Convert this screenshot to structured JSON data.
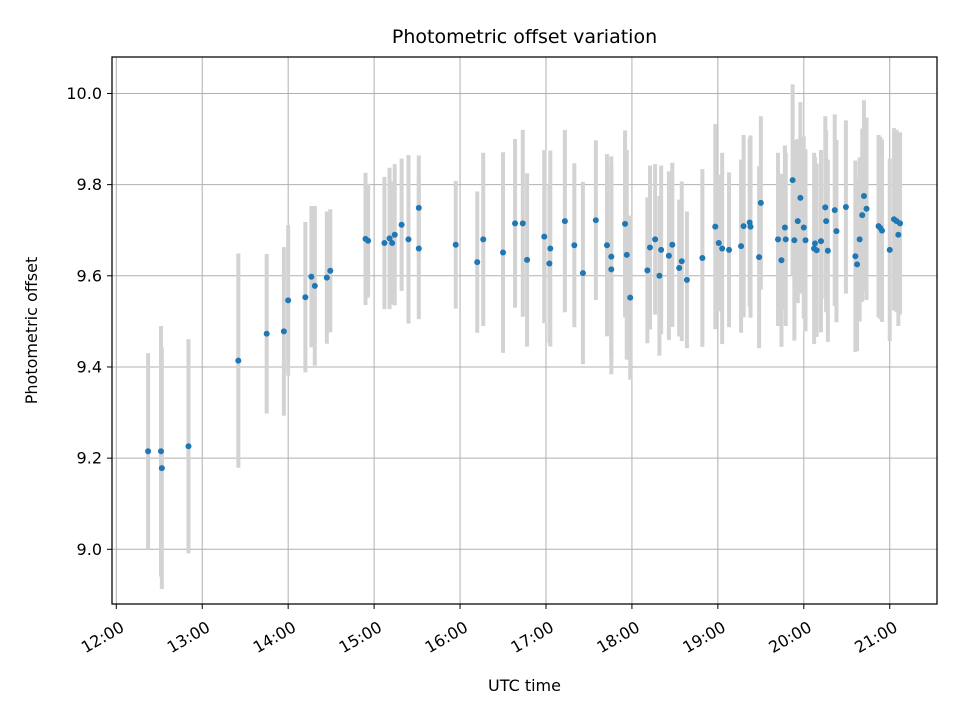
{
  "chart_data": {
    "type": "scatter",
    "title": "Photometric offset variation",
    "xlabel": "UTC time",
    "ylabel": "Photometric offset",
    "grid": true,
    "xlim": [
      11.95,
      21.55
    ],
    "ylim": [
      8.88,
      10.08
    ],
    "x_ticks": [
      {
        "value": 12,
        "label": "12:00"
      },
      {
        "value": 13,
        "label": "13:00"
      },
      {
        "value": 14,
        "label": "14:00"
      },
      {
        "value": 15,
        "label": "15:00"
      },
      {
        "value": 16,
        "label": "16:00"
      },
      {
        "value": 17,
        "label": "17:00"
      },
      {
        "value": 18,
        "label": "18:00"
      },
      {
        "value": 19,
        "label": "19:00"
      },
      {
        "value": 20,
        "label": "20:00"
      },
      {
        "value": 21,
        "label": "21:00"
      }
    ],
    "y_ticks": [
      {
        "value": 9.0,
        "label": "9.0"
      },
      {
        "value": 9.2,
        "label": "9.2"
      },
      {
        "value": 9.4,
        "label": "9.4"
      },
      {
        "value": 9.6,
        "label": "9.6"
      },
      {
        "value": 9.8,
        "label": "9.8"
      },
      {
        "value": 10.0,
        "label": "10.0"
      }
    ],
    "point_color": "#1f77b4",
    "errorbar_color": "#d3d3d3",
    "points": [
      [
        12.37,
        9.215,
        0.215
      ],
      [
        12.52,
        9.215,
        0.275
      ],
      [
        12.53,
        9.178,
        0.265
      ],
      [
        12.84,
        9.226,
        0.235
      ],
      [
        13.42,
        9.414,
        0.235
      ],
      [
        13.75,
        9.473,
        0.175
      ],
      [
        13.95,
        9.478,
        0.185
      ],
      [
        14.0,
        9.546,
        0.165
      ],
      [
        14.2,
        9.553,
        0.165
      ],
      [
        14.27,
        9.598,
        0.155
      ],
      [
        14.31,
        9.578,
        0.175
      ],
      [
        14.45,
        9.596,
        0.145
      ],
      [
        14.49,
        9.611,
        0.135
      ],
      [
        14.9,
        9.681,
        0.145
      ],
      [
        14.93,
        9.677,
        0.125
      ],
      [
        15.12,
        9.672,
        0.145
      ],
      [
        15.18,
        9.682,
        0.155
      ],
      [
        15.24,
        9.69,
        0.155
      ],
      [
        15.21,
        9.672,
        0.135
      ],
      [
        15.32,
        9.712,
        0.145
      ],
      [
        15.4,
        9.68,
        0.185
      ],
      [
        15.52,
        9.749,
        0.115
      ],
      [
        15.52,
        9.66,
        0.155
      ],
      [
        15.95,
        9.668,
        0.14
      ],
      [
        16.2,
        9.63,
        0.155
      ],
      [
        16.27,
        9.68,
        0.19
      ],
      [
        16.5,
        9.651,
        0.22
      ],
      [
        16.64,
        9.715,
        0.185
      ],
      [
        16.73,
        9.715,
        0.205
      ],
      [
        16.78,
        9.635,
        0.19
      ],
      [
        16.98,
        9.686,
        0.19
      ],
      [
        17.04,
        9.627,
        0.175
      ],
      [
        17.05,
        9.66,
        0.215
      ],
      [
        17.22,
        9.72,
        0.2
      ],
      [
        17.33,
        9.667,
        0.18
      ],
      [
        17.43,
        9.606,
        0.2
      ],
      [
        17.58,
        9.722,
        0.175
      ],
      [
        17.71,
        9.667,
        0.2
      ],
      [
        17.76,
        9.642,
        0.22
      ],
      [
        17.76,
        9.614,
        0.23
      ],
      [
        17.92,
        9.714,
        0.205
      ],
      [
        17.94,
        9.646,
        0.23
      ],
      [
        17.98,
        9.552,
        0.18
      ],
      [
        18.18,
        9.612,
        0.16
      ],
      [
        18.21,
        9.662,
        0.18
      ],
      [
        18.27,
        9.68,
        0.165
      ],
      [
        18.32,
        9.6,
        0.175
      ],
      [
        18.34,
        9.657,
        0.185
      ],
      [
        18.43,
        9.644,
        0.185
      ],
      [
        18.47,
        9.668,
        0.18
      ],
      [
        18.55,
        9.617,
        0.15
      ],
      [
        18.58,
        9.632,
        0.175
      ],
      [
        18.64,
        9.591,
        0.15
      ],
      [
        18.82,
        9.639,
        0.195
      ],
      [
        18.97,
        9.708,
        0.225
      ],
      [
        19.01,
        9.672,
        0.15
      ],
      [
        19.05,
        9.66,
        0.21
      ],
      [
        19.13,
        9.657,
        0.17
      ],
      [
        19.27,
        9.665,
        0.19
      ],
      [
        19.3,
        9.709,
        0.2
      ],
      [
        19.37,
        9.717,
        0.185
      ],
      [
        19.38,
        9.708,
        0.2
      ],
      [
        19.5,
        9.76,
        0.19
      ],
      [
        19.48,
        9.641,
        0.2
      ],
      [
        19.7,
        9.68,
        0.19
      ],
      [
        19.74,
        9.634,
        0.19
      ],
      [
        19.78,
        9.706,
        0.18
      ],
      [
        19.79,
        9.68,
        0.19
      ],
      [
        19.87,
        9.81,
        0.21
      ],
      [
        19.89,
        9.678,
        0.22
      ],
      [
        19.93,
        9.72,
        0.18
      ],
      [
        19.96,
        9.771,
        0.21
      ],
      [
        20.0,
        9.706,
        0.2
      ],
      [
        20.02,
        9.678,
        0.2
      ],
      [
        20.12,
        9.66,
        0.21
      ],
      [
        20.13,
        9.671,
        0.19
      ],
      [
        20.15,
        9.656,
        0.19
      ],
      [
        20.2,
        9.676,
        0.2
      ],
      [
        20.25,
        9.75,
        0.2
      ],
      [
        20.26,
        9.72,
        0.2
      ],
      [
        20.28,
        9.655,
        0.2
      ],
      [
        20.36,
        9.744,
        0.21
      ],
      [
        20.38,
        9.698,
        0.2
      ],
      [
        20.49,
        9.751,
        0.19
      ],
      [
        20.6,
        9.643,
        0.21
      ],
      [
        20.62,
        9.625,
        0.19
      ],
      [
        20.65,
        9.68,
        0.18
      ],
      [
        20.68,
        9.733,
        0.19
      ],
      [
        20.7,
        9.775,
        0.21
      ],
      [
        20.73,
        9.747,
        0.2
      ],
      [
        20.87,
        9.709,
        0.2
      ],
      [
        20.89,
        9.705,
        0.2
      ],
      [
        20.91,
        9.699,
        0.2
      ],
      [
        21.0,
        9.657,
        0.2
      ],
      [
        21.05,
        9.724,
        0.2
      ],
      [
        21.08,
        9.72,
        0.2
      ],
      [
        21.1,
        9.69,
        0.2
      ],
      [
        21.12,
        9.715,
        0.2
      ]
    ]
  }
}
